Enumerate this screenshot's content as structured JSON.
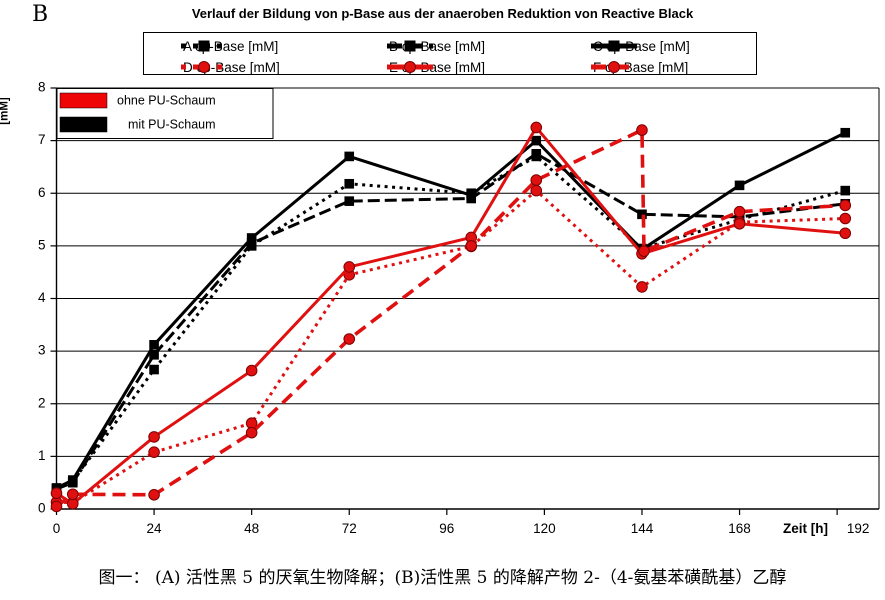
{
  "panel_label": "B",
  "caption": "图一：  (A) 活性黑 5 的厌氧生物降解；(B)活性黑 5 的降解产物 2-（4-氨基苯磺酰基）乙醇",
  "colors": {
    "series_red": "#e01010",
    "series_black": "#000000",
    "swatch_red": "#ee0505"
  },
  "chart_data": {
    "type": "line",
    "title": "Verlauf der Bildung von p-Base aus der anaeroben Reduktion von Reactive Black",
    "xlabel": "Zeit [h]",
    "ylabel": "[mM]",
    "xlim": [
      0,
      202.3
    ],
    "ylim": [
      0,
      8
    ],
    "xticks": [
      0,
      24,
      48,
      72,
      96,
      120,
      144,
      168,
      192
    ],
    "yticks": [
      0,
      1,
      2,
      3,
      4,
      5,
      6,
      7,
      8
    ],
    "grid": "horizontal-only",
    "legend_position": "top-center-box",
    "series": [
      {
        "name": "A cp-Base [mM]",
        "color": "#000000",
        "style": "dotted",
        "marker": "square",
        "x": [
          0,
          4,
          24,
          48,
          72,
          102,
          118,
          144,
          168,
          194
        ],
        "y": [
          0.38,
          0.52,
          2.65,
          5.0,
          6.18,
          6.0,
          6.7,
          4.95,
          5.5,
          6.05
        ]
      },
      {
        "name": "B cp-Base [mM]",
        "color": "#000000",
        "style": "dashed",
        "marker": "square",
        "x": [
          0,
          4,
          24,
          48,
          72,
          102,
          118,
          144,
          168,
          194
        ],
        "y": [
          0.38,
          0.5,
          2.93,
          5.05,
          5.85,
          5.9,
          6.75,
          5.6,
          5.55,
          5.8
        ]
      },
      {
        "name": "C cp-Base [mM]",
        "color": "#000000",
        "style": "solid",
        "marker": "square",
        "x": [
          0,
          4,
          24,
          48,
          72,
          102,
          118,
          144,
          168,
          194
        ],
        "y": [
          0.4,
          0.55,
          3.12,
          5.15,
          6.7,
          5.96,
          7.0,
          4.93,
          6.15,
          7.15
        ]
      },
      {
        "name": "D cp-Base [mM]",
        "color": "#e01010",
        "style": "dotted",
        "marker": "circle",
        "x": [
          0,
          4,
          24,
          48,
          72,
          102,
          118,
          144,
          168,
          194
        ],
        "y": [
          0.13,
          0.12,
          1.08,
          1.63,
          4.45,
          4.99,
          6.05,
          4.22,
          5.45,
          5.52
        ]
      },
      {
        "name": "E cp-Base [mM]",
        "color": "#e01010",
        "style": "solid",
        "marker": "circle",
        "x": [
          0,
          4,
          24,
          48,
          72,
          102,
          118,
          144,
          168,
          194
        ],
        "y": [
          0.3,
          0.1,
          1.37,
          2.63,
          4.6,
          5.16,
          7.25,
          4.85,
          5.42,
          5.24
        ]
      },
      {
        "name": "F cp-Base [mM]",
        "color": "#e01010",
        "style": "long-dash",
        "marker": "circle",
        "x": [
          0,
          4,
          24,
          48,
          72,
          102,
          118,
          144,
          144.5,
          168,
          194
        ],
        "y": [
          0.05,
          0.28,
          0.27,
          1.45,
          3.23,
          5.0,
          6.25,
          7.2,
          4.9,
          5.65,
          5.77
        ]
      }
    ],
    "inner_legend": [
      {
        "label": "ohne PU-Schaum",
        "color": "#ee0505"
      },
      {
        "label": "mit PU-Schaum",
        "color": "#000000"
      }
    ]
  }
}
